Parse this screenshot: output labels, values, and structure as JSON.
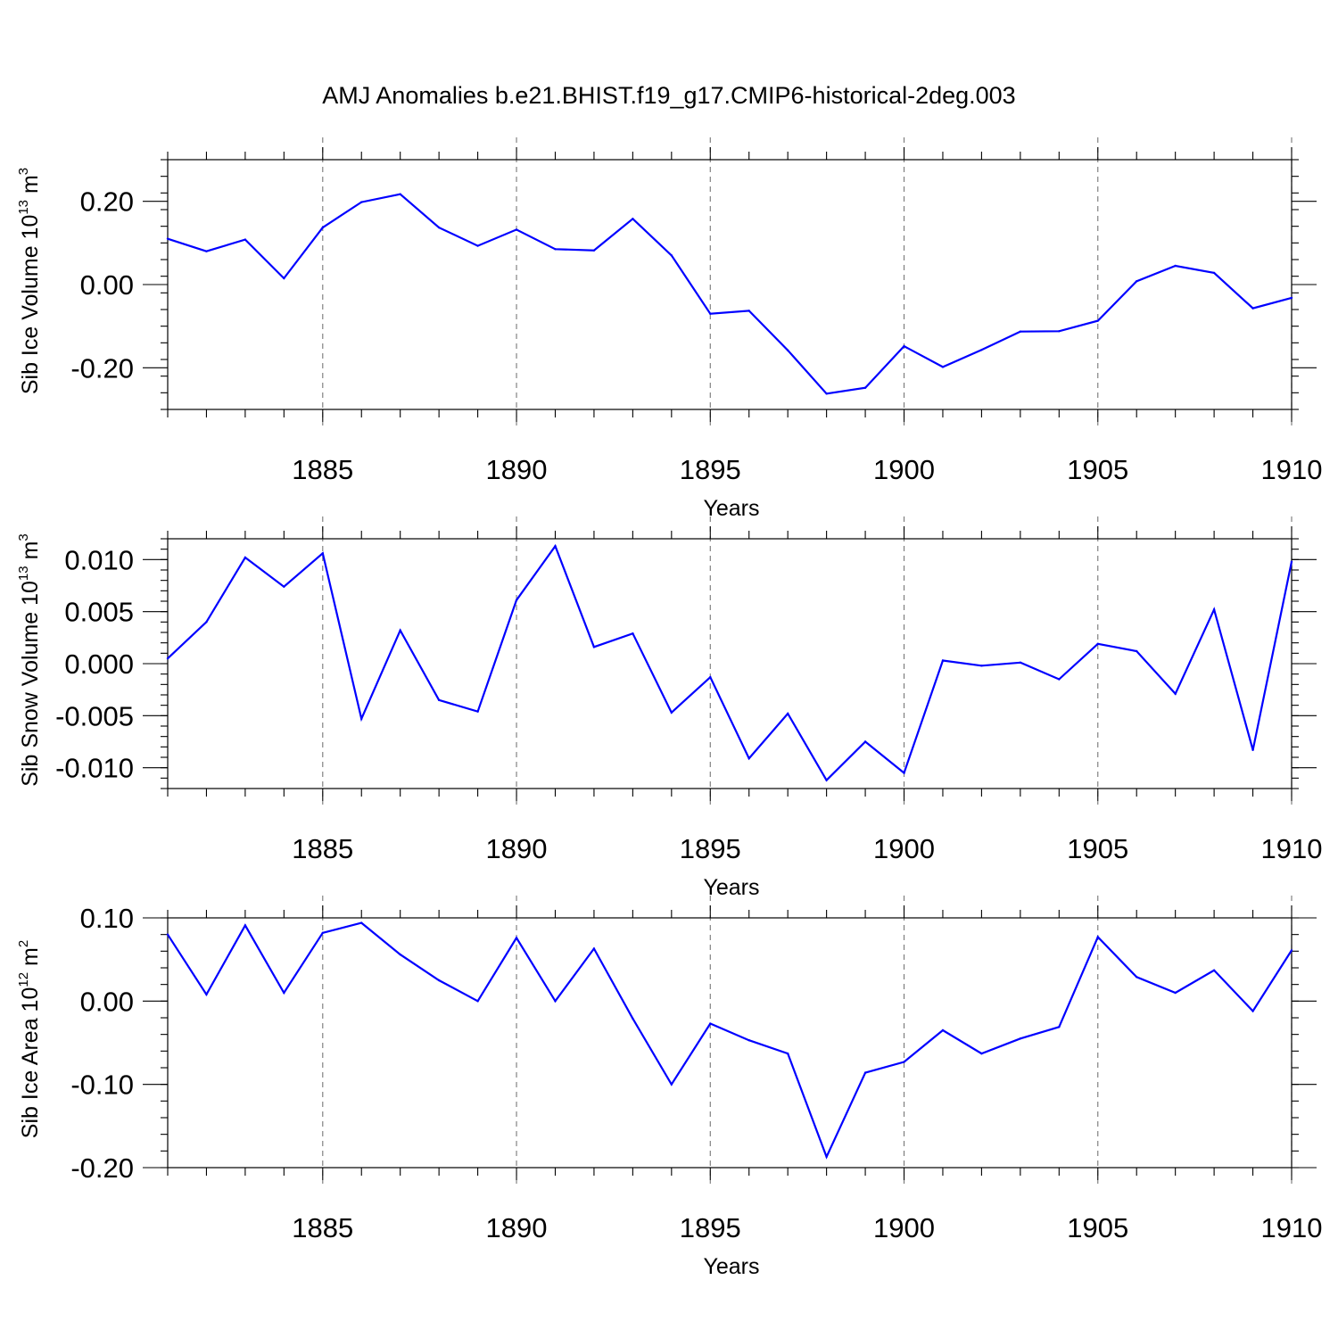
{
  "title": "AMJ Anomalies b.e21.BHIST.f19_g17.CMIP6-historical-2deg.003",
  "series_color": "#0000ff",
  "chart_data": [
    {
      "type": "line",
      "ylabel_parts": [
        "Sib Ice Volume 10",
        "13",
        " m",
        "3"
      ],
      "xlabel": "Years",
      "xlim": [
        1881,
        1910
      ],
      "ylim": [
        -0.3,
        0.3
      ],
      "x_ticks": [
        1885,
        1890,
        1895,
        1900,
        1905,
        1910
      ],
      "x_tick_labels": [
        "1885",
        "1890",
        "1895",
        "1900",
        "1905",
        "1910"
      ],
      "y_ticks": [
        0.2,
        0.0,
        -0.2
      ],
      "y_tick_labels": [
        "0.20",
        "0.00",
        "-0.20"
      ],
      "y_minor_step": 0.04,
      "grid": "dashed vertical at labeled years",
      "x": [
        1881,
        1882,
        1883,
        1884,
        1885,
        1886,
        1887,
        1888,
        1889,
        1890,
        1891,
        1892,
        1893,
        1894,
        1895,
        1896,
        1897,
        1898,
        1899,
        1900,
        1901,
        1902,
        1903,
        1904,
        1905,
        1906,
        1907,
        1908,
        1909,
        1910
      ],
      "values": [
        0.11,
        0.08,
        0.108,
        0.015,
        0.137,
        0.198,
        0.217,
        0.137,
        0.093,
        0.132,
        0.085,
        0.082,
        0.158,
        0.07,
        -0.07,
        -0.063,
        -0.158,
        -0.262,
        -0.248,
        -0.148,
        -0.198,
        -0.157,
        -0.113,
        -0.112,
        -0.087,
        0.008,
        0.045,
        0.028,
        -0.057,
        -0.032
      ]
    },
    {
      "type": "line",
      "ylabel_parts": [
        "Sib Snow Volume 10",
        "13",
        " m",
        "3"
      ],
      "xlabel": "Years",
      "xlim": [
        1881,
        1910
      ],
      "ylim": [
        -0.012,
        0.012
      ],
      "x_ticks": [
        1885,
        1890,
        1895,
        1900,
        1905,
        1910
      ],
      "x_tick_labels": [
        "1885",
        "1890",
        "1895",
        "1900",
        "1905",
        "1910"
      ],
      "y_ticks": [
        0.01,
        0.005,
        0.0,
        -0.005,
        -0.01
      ],
      "y_tick_labels": [
        "0.010",
        "0.005",
        "0.000",
        "-0.005",
        "-0.010"
      ],
      "y_minor_step": 0.001,
      "grid": "dashed vertical at labeled years",
      "x": [
        1881,
        1882,
        1883,
        1884,
        1885,
        1886,
        1887,
        1888,
        1889,
        1890,
        1891,
        1892,
        1893,
        1894,
        1895,
        1896,
        1897,
        1898,
        1899,
        1900,
        1901,
        1902,
        1903,
        1904,
        1905,
        1906,
        1907,
        1908,
        1909,
        1910
      ],
      "values": [
        0.0005,
        0.004,
        0.0102,
        0.0074,
        0.0106,
        -0.0053,
        0.0032,
        -0.0035,
        -0.0046,
        0.0061,
        0.0113,
        0.0016,
        0.0029,
        -0.0047,
        -0.0013,
        -0.0091,
        -0.0048,
        -0.0112,
        -0.0075,
        -0.0105,
        0.0003,
        -0.0002,
        0.0001,
        -0.0015,
        0.0019,
        0.0012,
        -0.0029,
        0.0052,
        -0.0083,
        0.0098
      ]
    },
    {
      "type": "line",
      "ylabel_parts": [
        "Sib Ice Area 10",
        "12",
        " m",
        "2"
      ],
      "xlabel": "Years",
      "xlim": [
        1881,
        1910
      ],
      "ylim": [
        -0.2,
        0.1
      ],
      "x_ticks": [
        1885,
        1890,
        1895,
        1900,
        1905,
        1910
      ],
      "x_tick_labels": [
        "1885",
        "1890",
        "1895",
        "1900",
        "1905",
        "1910"
      ],
      "y_ticks": [
        0.1,
        0.0,
        -0.1,
        -0.2
      ],
      "y_tick_labels": [
        "0.10",
        "0.00",
        "-0.10",
        "-0.20"
      ],
      "y_minor_step": 0.02,
      "grid": "dashed vertical at labeled years",
      "x": [
        1881,
        1882,
        1883,
        1884,
        1885,
        1886,
        1887,
        1888,
        1889,
        1890,
        1891,
        1892,
        1893,
        1894,
        1895,
        1896,
        1897,
        1898,
        1899,
        1900,
        1901,
        1902,
        1903,
        1904,
        1905,
        1906,
        1907,
        1908,
        1909,
        1910
      ],
      "values": [
        0.08,
        0.008,
        0.091,
        0.01,
        0.082,
        0.094,
        0.056,
        0.025,
        0.0,
        0.076,
        0.0,
        0.063,
        -0.021,
        -0.1,
        -0.027,
        -0.047,
        -0.063,
        -0.187,
        -0.086,
        -0.073,
        -0.035,
        -0.063,
        -0.045,
        -0.031,
        0.077,
        0.029,
        0.01,
        0.037,
        -0.012,
        0.061
      ]
    }
  ]
}
